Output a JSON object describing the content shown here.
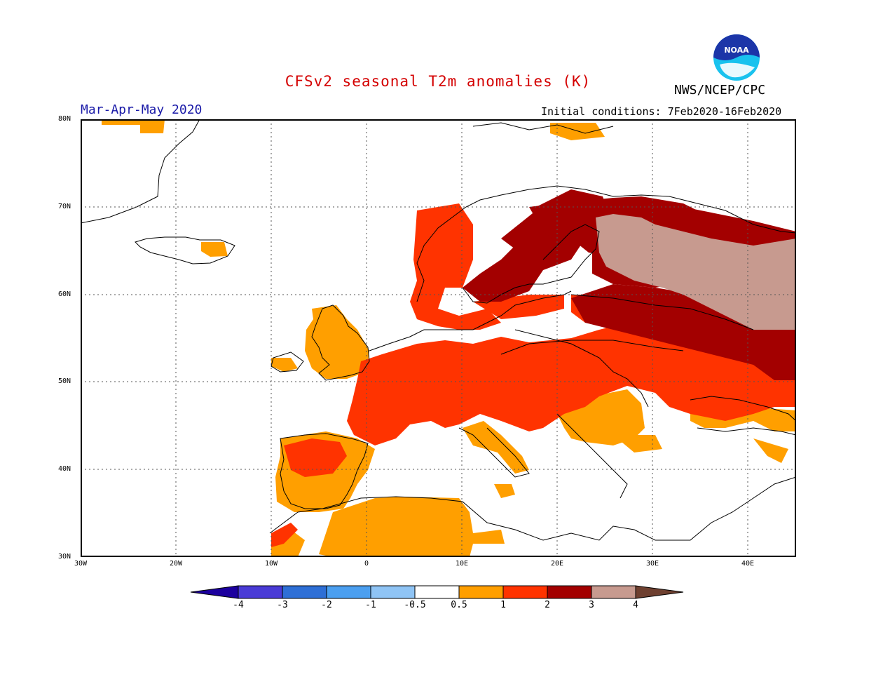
{
  "title": "CFSv2 seasonal T2m anomalies (K)",
  "agency": "NWS/NCEP/CPC",
  "logo_text": "NOAA",
  "period": "Mar-Apr-May 2020",
  "initial_conditions": "Initial conditions: 7Feb2020-16Feb2020",
  "lat_labels": [
    "30N",
    "40N",
    "50N",
    "60N",
    "70N",
    "80N"
  ],
  "lon_labels": [
    "30W",
    "20W",
    "10W",
    "0",
    "10E",
    "20E",
    "30E",
    "40E"
  ],
  "colorbar": {
    "labels": [
      "-4",
      "-3",
      "-2",
      "-1",
      "-0.5",
      "0.5",
      "1",
      "2",
      "3",
      "4"
    ],
    "colors": [
      "#1c009e",
      "#4a3bd6",
      "#2e6fd6",
      "#4b9ff0",
      "#8fc4f5",
      "#ffffff",
      "#ff9f00",
      "#ff3300",
      "#a30000",
      "#c79a8f",
      "#6e4030"
    ]
  },
  "colors": {
    "title": "#d40000",
    "period": "#1a1aa8",
    "coast": "#000000",
    "grid": "#555555"
  }
}
